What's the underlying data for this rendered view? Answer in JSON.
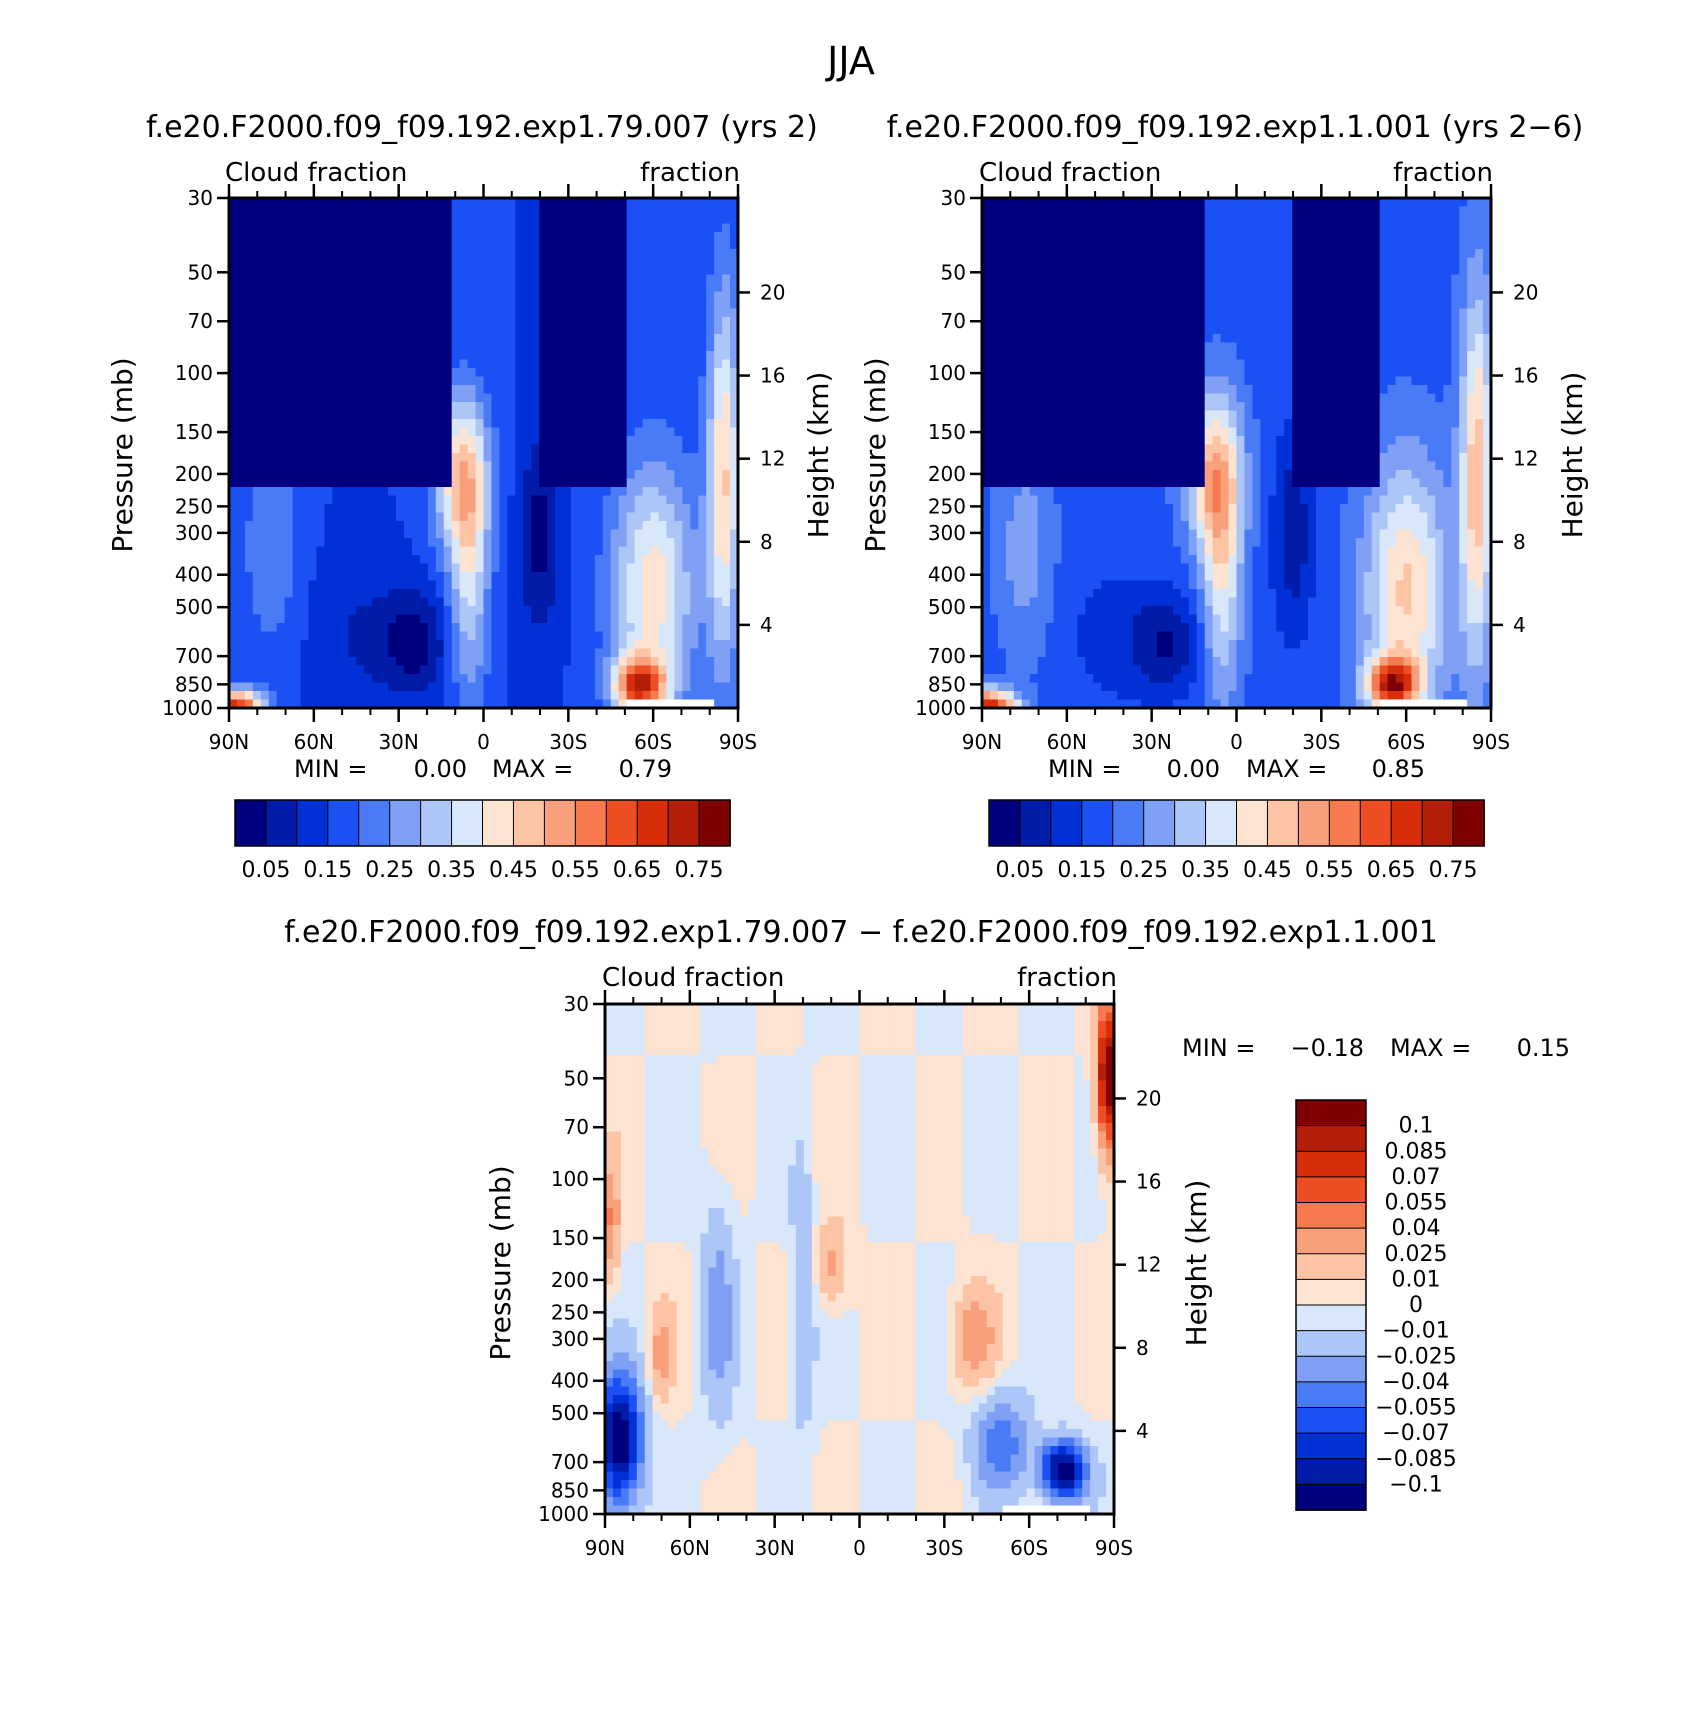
{
  "figure_title": "JJA",
  "colors": {
    "seq_palette": [
      "#00007e",
      "#001ca8",
      "#0030d6",
      "#1a50f4",
      "#4a7bf6",
      "#7fa0f4",
      "#adc6f8",
      "#d8e8fa",
      "#fde3d1",
      "#fcc4a4",
      "#f8a07c",
      "#f67a4d",
      "#ee4e23",
      "#d92e0c",
      "#b21e08",
      "#7e0202"
    ],
    "diff_palette": [
      "#00007e",
      "#001ca8",
      "#0030d6",
      "#1a50f4",
      "#4a7bf6",
      "#7fa0f4",
      "#adc6f8",
      "#d8e8fa",
      "#fde3d1",
      "#fcc4a4",
      "#f8a07c",
      "#f67a4d",
      "#ee4e23",
      "#d92e0c",
      "#b21e08",
      "#7e0202"
    ],
    "missing": "#ffffff"
  },
  "chart_data": [
    {
      "type": "heatmap",
      "id": "panel1",
      "title": "f.e20.F2000.f09_f09.192.exp1.79.007 (yrs 2)",
      "left_label": "Cloud fraction",
      "right_label": "fraction",
      "ylabel": "Pressure (mb)",
      "ylabel_right": "Height (km)",
      "x_range": [
        90,
        -90
      ],
      "x_ticks": [
        {
          "v": 90,
          "label": "90N"
        },
        {
          "v": 60,
          "label": "60N"
        },
        {
          "v": 30,
          "label": "30N"
        },
        {
          "v": 0,
          "label": "0"
        },
        {
          "v": -30,
          "label": "30S"
        },
        {
          "v": -60,
          "label": "60S"
        },
        {
          "v": -90,
          "label": "90S"
        }
      ],
      "y_ticks": [
        30,
        50,
        70,
        100,
        150,
        200,
        250,
        300,
        400,
        500,
        700,
        850,
        1000
      ],
      "height_ticks": [
        20,
        16,
        12,
        8,
        4
      ],
      "stats": {
        "min_label": "MIN =",
        "min": "0.00",
        "max_label": "MAX =",
        "max": "0.79"
      },
      "levels": [
        0.05,
        0.1,
        0.15,
        0.2,
        0.25,
        0.3,
        0.35,
        0.4,
        0.45,
        0.5,
        0.55,
        0.6,
        0.65,
        0.7,
        0.75
      ],
      "colorbar_labels": [
        "0.05",
        "0.15",
        "0.25",
        "0.35",
        "0.45",
        "0.55",
        "0.65",
        "0.75"
      ],
      "field": "cloud"
    },
    {
      "type": "heatmap",
      "id": "panel2",
      "title": "f.e20.F2000.f09_f09.192.exp1.1.001 (yrs 2−6)",
      "left_label": "Cloud fraction",
      "right_label": "fraction",
      "ylabel": "Pressure (mb)",
      "ylabel_right": "Height (km)",
      "x_range": [
        90,
        -90
      ],
      "x_ticks": [
        {
          "v": 90,
          "label": "90N"
        },
        {
          "v": 60,
          "label": "60N"
        },
        {
          "v": 30,
          "label": "30N"
        },
        {
          "v": 0,
          "label": "0"
        },
        {
          "v": -30,
          "label": "30S"
        },
        {
          "v": -60,
          "label": "60S"
        },
        {
          "v": -90,
          "label": "90S"
        }
      ],
      "y_ticks": [
        30,
        50,
        70,
        100,
        150,
        200,
        250,
        300,
        400,
        500,
        700,
        850,
        1000
      ],
      "height_ticks": [
        20,
        16,
        12,
        8,
        4
      ],
      "stats": {
        "min_label": "MIN =",
        "min": "0.00",
        "max_label": "MAX =",
        "max": "0.85"
      },
      "levels": [
        0.05,
        0.1,
        0.15,
        0.2,
        0.25,
        0.3,
        0.35,
        0.4,
        0.45,
        0.5,
        0.55,
        0.6,
        0.65,
        0.7,
        0.75
      ],
      "colorbar_labels": [
        "0.05",
        "0.15",
        "0.25",
        "0.35",
        "0.45",
        "0.55",
        "0.65",
        "0.75"
      ],
      "field": "cloud"
    },
    {
      "type": "heatmap",
      "id": "panel3",
      "title": "f.e20.F2000.f09_f09.192.exp1.79.007 − f.e20.F2000.f09_f09.192.exp1.1.001",
      "left_label": "Cloud fraction",
      "right_label": "fraction",
      "ylabel": "Pressure (mb)",
      "ylabel_right": "Height (km)",
      "x_range": [
        90,
        -90
      ],
      "x_ticks": [
        {
          "v": 90,
          "label": "90N"
        },
        {
          "v": 60,
          "label": "60N"
        },
        {
          "v": 30,
          "label": "30N"
        },
        {
          "v": 0,
          "label": "0"
        },
        {
          "v": -30,
          "label": "30S"
        },
        {
          "v": -60,
          "label": "60S"
        },
        {
          "v": -90,
          "label": "90S"
        }
      ],
      "y_ticks": [
        30,
        50,
        70,
        100,
        150,
        200,
        250,
        300,
        400,
        500,
        700,
        850,
        1000
      ],
      "height_ticks": [
        20,
        16,
        12,
        8,
        4
      ],
      "stats": {
        "min_label": "MIN =",
        "min": "−0.18",
        "max_label": "MAX =",
        "max": "0.15"
      },
      "levels": [
        -0.1,
        -0.085,
        -0.07,
        -0.055,
        -0.04,
        -0.025,
        -0.01,
        0,
        0.01,
        0.025,
        0.04,
        0.055,
        0.07,
        0.085,
        0.1
      ],
      "colorbar_labels": [
        "0.1",
        "0.085",
        "0.07",
        "0.055",
        "0.04",
        "0.025",
        "0.01",
        "0",
        "−0.01",
        "−0.025",
        "−0.04",
        "−0.055",
        "−0.07",
        "−0.085",
        "−0.1"
      ],
      "field": "diff"
    }
  ]
}
